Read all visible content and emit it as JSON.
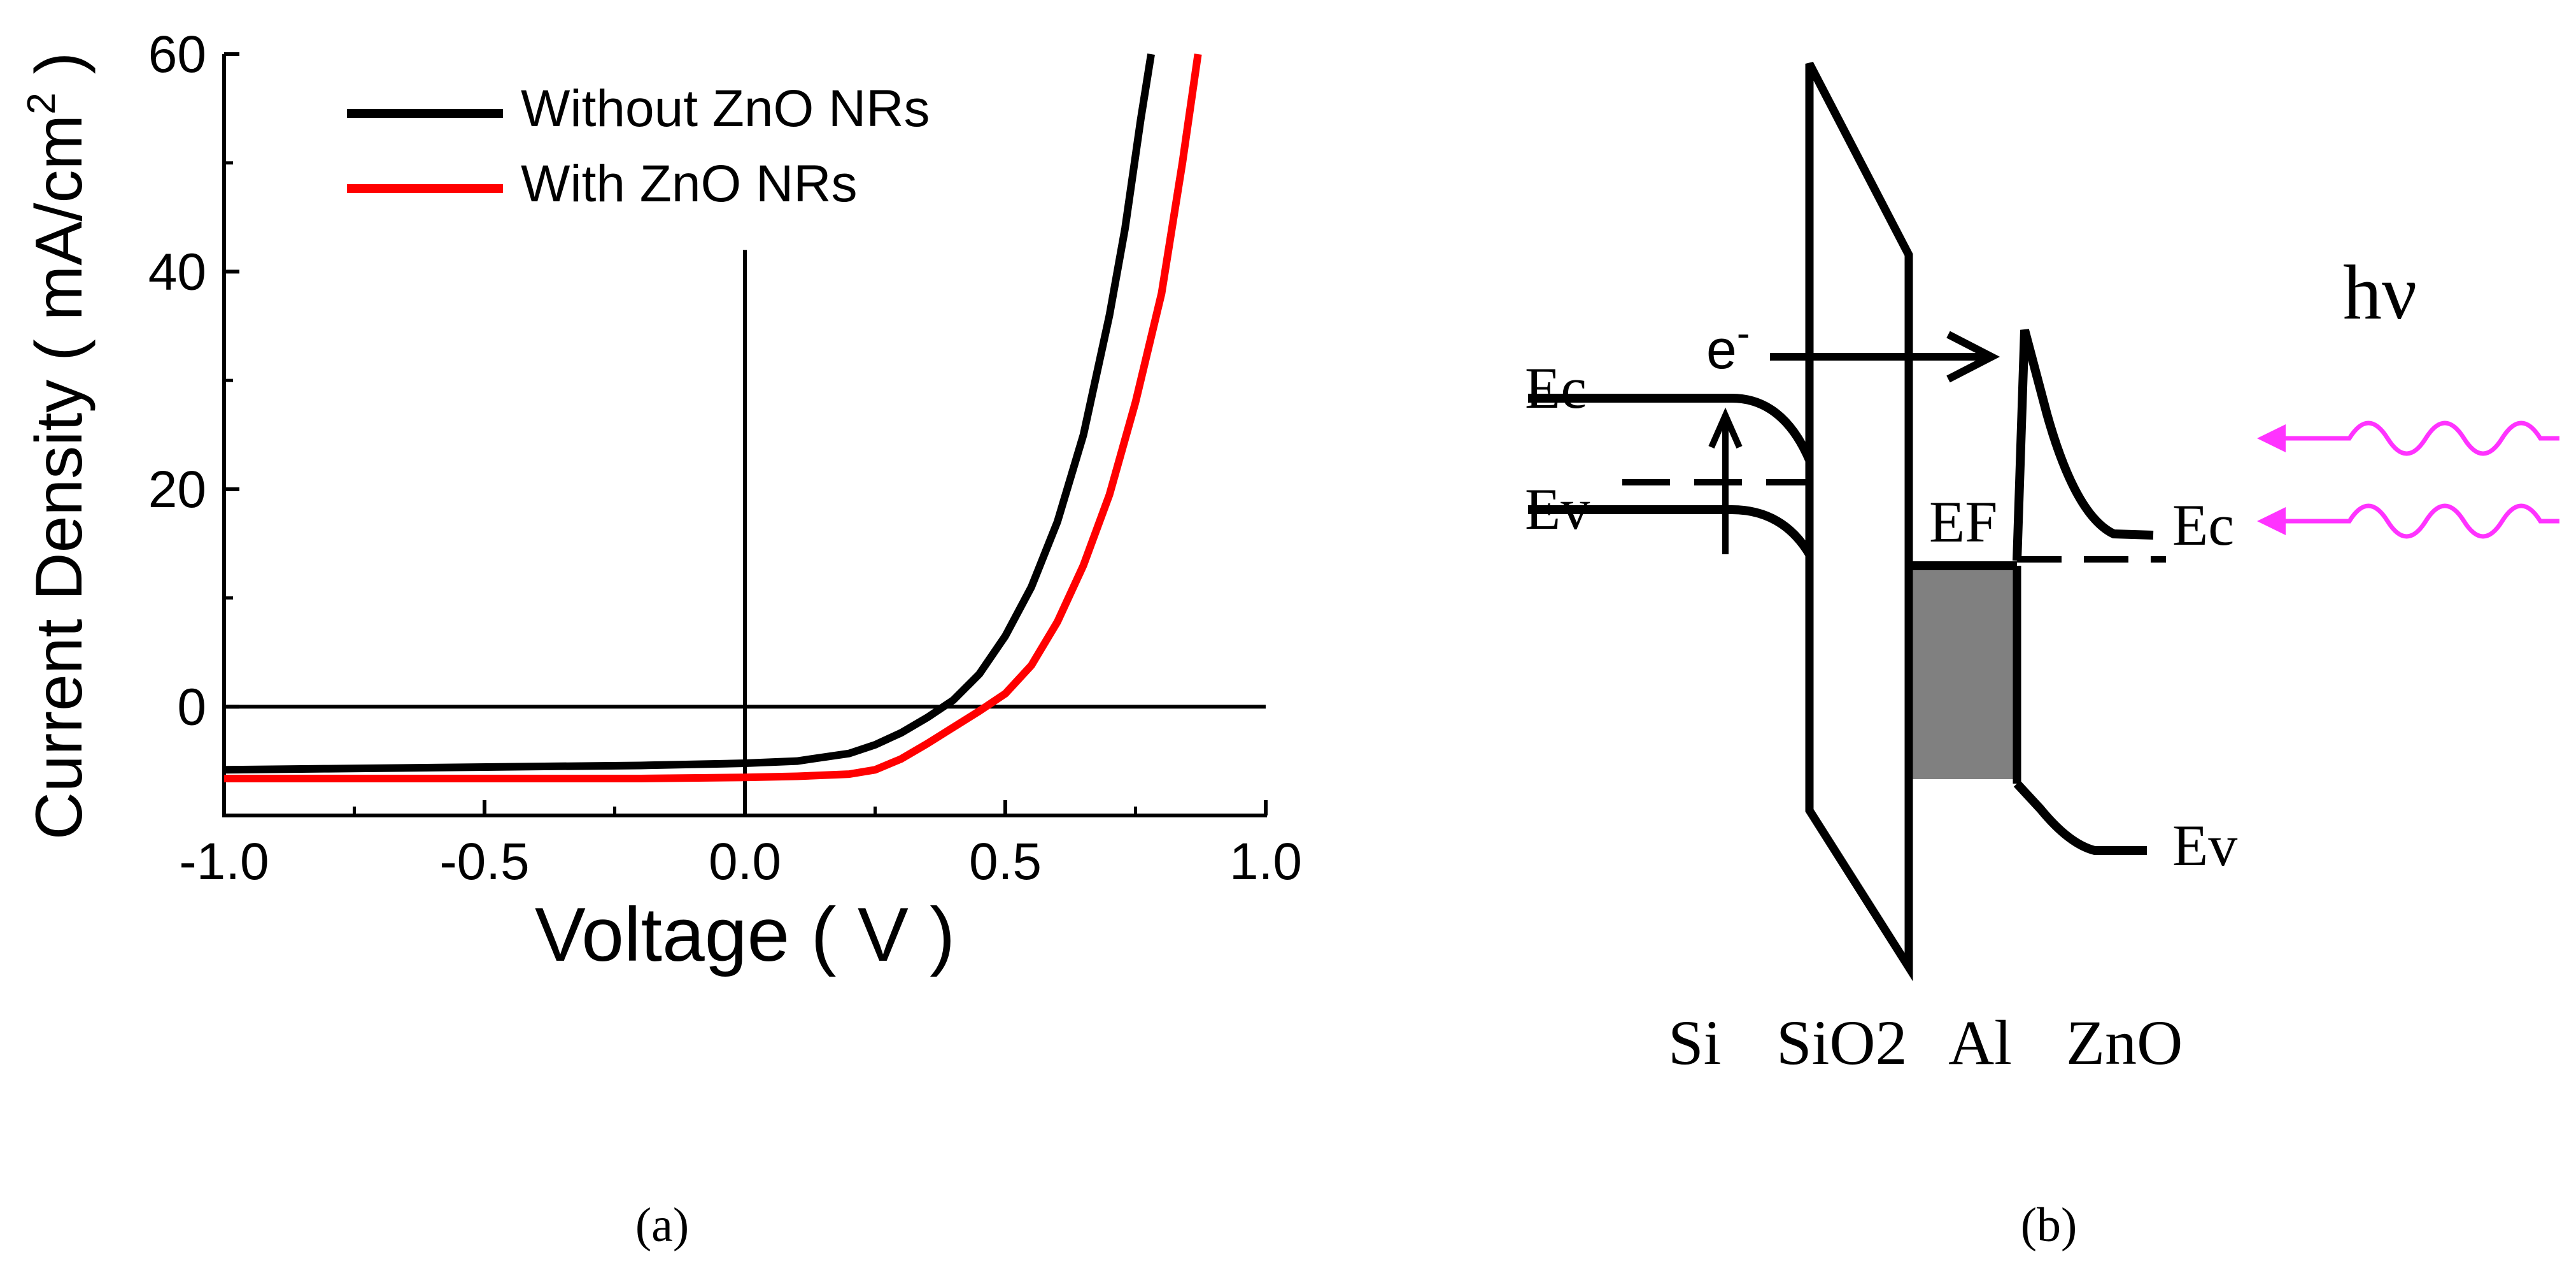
{
  "chart_data": {
    "type": "line",
    "title": "",
    "xlabel": "Voltage ( V )",
    "ylabel_prefix": "Current Density ( mA/cm",
    "ylabel_sup": "2",
    "ylabel_suffix": " )",
    "xlim": [
      -1.0,
      1.0
    ],
    "ylim": [
      -10,
      60
    ],
    "xticks": [
      -1.0,
      -0.5,
      0.0,
      0.5,
      1.0
    ],
    "xtick_labels": [
      "-1.0",
      "-0.5",
      "0.0",
      "0.5",
      "1.0"
    ],
    "yticks": [
      0,
      20,
      40,
      60
    ],
    "ytick_labels": [
      "0",
      "20",
      "40",
      "60"
    ],
    "legend_position": "top-left",
    "series": [
      {
        "name": "Without ZnO NRs",
        "color": "#000000",
        "x": [
          -1.0,
          -0.8,
          -0.6,
          -0.4,
          -0.2,
          0.0,
          0.1,
          0.2,
          0.25,
          0.3,
          0.35,
          0.4,
          0.45,
          0.5,
          0.55,
          0.6,
          0.65,
          0.7,
          0.73,
          0.76,
          0.78
        ],
        "y": [
          -5.8,
          -5.7,
          -5.6,
          -5.5,
          -5.4,
          -5.2,
          -5.0,
          -4.3,
          -3.5,
          -2.4,
          -1.0,
          0.6,
          3.0,
          6.5,
          11.0,
          17.0,
          25.0,
          36.0,
          44.0,
          54.0,
          60.0
        ]
      },
      {
        "name": "With ZnO NRs",
        "color": "#ff0000",
        "x": [
          -1.0,
          -0.8,
          -0.6,
          -0.4,
          -0.2,
          0.0,
          0.1,
          0.2,
          0.25,
          0.3,
          0.35,
          0.4,
          0.45,
          0.5,
          0.55,
          0.6,
          0.65,
          0.7,
          0.75,
          0.8,
          0.84,
          0.87
        ],
        "y": [
          -6.6,
          -6.6,
          -6.6,
          -6.6,
          -6.6,
          -6.5,
          -6.4,
          -6.2,
          -5.8,
          -4.8,
          -3.4,
          -1.9,
          -0.4,
          1.2,
          3.8,
          7.8,
          13.0,
          19.5,
          28.0,
          38.0,
          50.0,
          60.0
        ]
      }
    ],
    "reference_lines": [
      {
        "orientation": "horizontal",
        "value": 0
      },
      {
        "orientation": "vertical",
        "value": 0.0
      }
    ]
  },
  "band_diagram": {
    "labels": {
      "ec_left": "Ec",
      "ev_left": "Ev",
      "electron": "e",
      "electron_sup": "-",
      "fermi": "EF",
      "ec_right": "Ec",
      "ev_right": "Ev",
      "photon": "hν"
    },
    "layers": [
      "Si",
      "SiO2",
      "Al",
      "ZnO"
    ],
    "colors": {
      "line": "#000000",
      "metal_fill": "#808080",
      "light": "#ff33ff"
    }
  },
  "captions": {
    "a": "(a)",
    "b": "(b)"
  }
}
